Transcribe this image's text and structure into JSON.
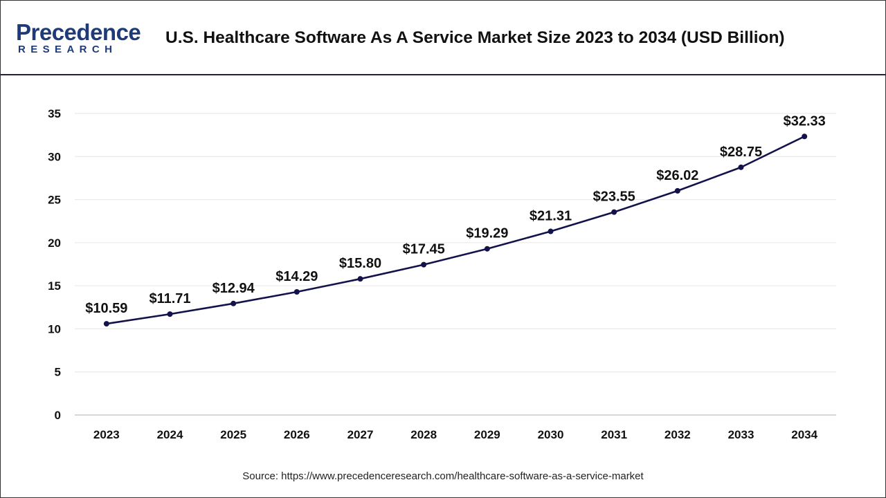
{
  "brand": {
    "name_main": "Precedence",
    "name_sub": "RESEARCH",
    "color": "#1e3a78"
  },
  "title": "U.S. Healthcare Software As A Service Market Size 2023 to 2034 (USD Billion)",
  "source": "Source: https://www.precedenceresearch.com/healthcare-software-as-a-service-market",
  "chart_data": {
    "type": "line",
    "title": "U.S. Healthcare Software As A Service Market Size 2023 to 2034 (USD Billion)",
    "xlabel": "",
    "ylabel": "",
    "categories": [
      "2023",
      "2024",
      "2025",
      "2026",
      "2027",
      "2028",
      "2029",
      "2030",
      "2031",
      "2032",
      "2033",
      "2034"
    ],
    "series": [
      {
        "values": [
          10.59,
          11.71,
          12.94,
          14.29,
          15.8,
          17.45,
          19.29,
          21.31,
          23.55,
          26.02,
          28.75,
          32.33
        ],
        "labels": [
          "$10.59",
          "$11.71",
          "$12.94",
          "$14.29",
          "$15.80",
          "$17.45",
          "$19.29",
          "$21.31",
          "$23.55",
          "$26.02",
          "$28.75",
          "$32.33"
        ],
        "color": "#13124a"
      }
    ],
    "ylim": [
      0,
      35
    ],
    "yticks": [
      0,
      5,
      10,
      15,
      20,
      25,
      30,
      35
    ],
    "grid": true,
    "legend": "none"
  }
}
